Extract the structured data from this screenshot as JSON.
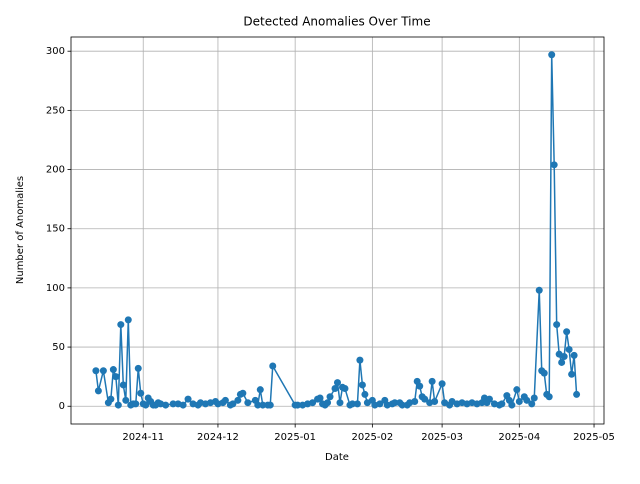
{
  "chart_data": {
    "type": "line",
    "title": "Detected Anomalies Over Time",
    "x_label": "Date",
    "y_label": "Number of Anomalies",
    "color": "#1f77b4",
    "grid": true,
    "x": [
      "2024-10-13",
      "2024-10-14",
      "2024-10-16",
      "2024-10-18",
      "2024-10-19",
      "2024-10-20",
      "2024-10-21",
      "2024-10-22",
      "2024-10-23",
      "2024-10-24",
      "2024-10-25",
      "2024-10-26",
      "2024-10-27",
      "2024-10-28",
      "2024-10-29",
      "2024-10-30",
      "2024-10-31",
      "2024-11-01",
      "2024-11-02",
      "2024-11-03",
      "2024-11-04",
      "2024-11-05",
      "2024-11-06",
      "2024-11-07",
      "2024-11-08",
      "2024-11-10",
      "2024-11-13",
      "2024-11-15",
      "2024-11-17",
      "2024-11-19",
      "2024-11-21",
      "2024-11-23",
      "2024-11-24",
      "2024-11-26",
      "2024-11-28",
      "2024-11-30",
      "2024-12-01",
      "2024-12-03",
      "2024-12-04",
      "2024-12-06",
      "2024-12-07",
      "2024-12-09",
      "2024-12-10",
      "2024-12-11",
      "2024-12-13",
      "2024-12-16",
      "2024-12-17",
      "2024-12-18",
      "2024-12-19",
      "2024-12-21",
      "2024-12-22",
      "2024-12-23",
      "2025-01-01",
      "2025-01-02",
      "2025-01-04",
      "2025-01-06",
      "2025-01-08",
      "2025-01-10",
      "2025-01-11",
      "2025-01-12",
      "2025-01-13",
      "2025-01-14",
      "2025-01-15",
      "2025-01-17",
      "2025-01-18",
      "2025-01-19",
      "2025-01-20",
      "2025-01-21",
      "2025-01-23",
      "2025-01-24",
      "2025-01-26",
      "2025-01-27",
      "2025-01-28",
      "2025-01-29",
      "2025-01-30",
      "2025-02-01",
      "2025-02-02",
      "2025-02-04",
      "2025-02-06",
      "2025-02-07",
      "2025-02-09",
      "2025-02-10",
      "2025-02-12",
      "2025-02-13",
      "2025-02-15",
      "2025-02-16",
      "2025-02-18",
      "2025-02-19",
      "2025-02-20",
      "2025-02-21",
      "2025-02-22",
      "2025-02-24",
      "2025-02-25",
      "2025-02-26",
      "2025-03-01",
      "2025-03-02",
      "2025-03-04",
      "2025-03-05",
      "2025-03-07",
      "2025-03-09",
      "2025-03-11",
      "2025-03-13",
      "2025-03-15",
      "2025-03-17",
      "2025-03-18",
      "2025-03-19",
      "2025-03-20",
      "2025-03-22",
      "2025-03-24",
      "2025-03-25",
      "2025-03-27",
      "2025-03-28",
      "2025-03-29",
      "2025-03-31",
      "2025-04-01",
      "2025-04-03",
      "2025-04-04",
      "2025-04-06",
      "2025-04-07",
      "2025-04-09",
      "2025-04-10",
      "2025-04-11",
      "2025-04-12",
      "2025-04-13",
      "2025-04-14",
      "2025-04-15",
      "2025-04-16",
      "2025-04-17",
      "2025-04-18",
      "2025-04-19",
      "2025-04-20",
      "2025-04-21",
      "2025-04-22",
      "2025-04-23",
      "2025-04-24"
    ],
    "values": [
      30,
      13,
      30,
      3,
      6,
      31,
      25,
      1,
      69,
      18,
      5,
      73,
      1,
      2,
      2,
      32,
      11,
      2,
      1,
      7,
      4,
      1,
      1,
      3,
      2,
      1,
      2,
      2,
      1,
      6,
      2,
      1,
      3,
      2,
      3,
      4,
      2,
      3,
      5,
      1,
      2,
      5,
      10,
      11,
      3,
      5,
      1,
      14,
      1,
      1,
      1,
      34,
      1,
      1,
      1,
      2,
      3,
      6,
      7,
      2,
      1,
      3,
      8,
      15,
      20,
      3,
      16,
      15,
      1,
      2,
      2,
      39,
      18,
      10,
      3,
      5,
      1,
      2,
      5,
      1,
      2,
      3,
      3,
      1,
      1,
      3,
      4,
      21,
      17,
      8,
      6,
      3,
      21,
      4,
      19,
      3,
      1,
      4,
      2,
      3,
      2,
      3,
      2,
      3,
      7,
      3,
      6,
      2,
      1,
      2,
      9,
      5,
      1,
      14,
      4,
      8,
      5,
      2,
      7,
      98,
      30,
      28,
      10,
      8,
      297,
      204,
      69,
      44,
      37,
      42,
      63,
      48,
      27,
      43,
      10
    ],
    "xlim": [
      "2024-10-03",
      "2025-05-05"
    ],
    "xticks": [
      {
        "value": "2024-11-01",
        "label": "2024-11"
      },
      {
        "value": "2024-12-01",
        "label": "2024-12"
      },
      {
        "value": "2025-01-01",
        "label": "2025-01"
      },
      {
        "value": "2025-02-01",
        "label": "2025-02"
      },
      {
        "value": "2025-03-01",
        "label": "2025-03"
      },
      {
        "value": "2025-04-01",
        "label": "2025-04"
      },
      {
        "value": "2025-05-01",
        "label": "2025-05"
      }
    ],
    "ylim": [
      -15,
      312
    ],
    "yticks": [
      0,
      50,
      100,
      150,
      200,
      250,
      300
    ]
  }
}
